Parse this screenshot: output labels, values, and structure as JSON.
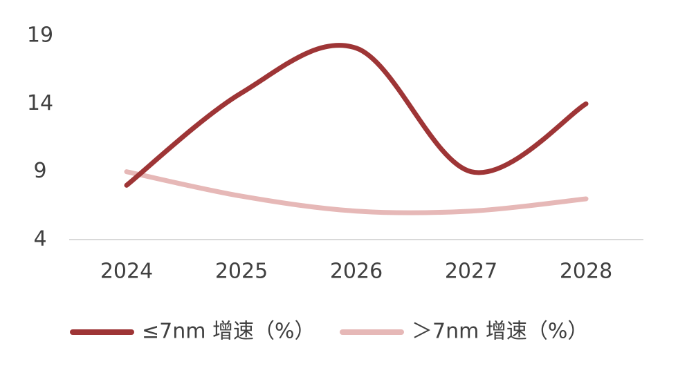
{
  "chart_data": {
    "type": "line",
    "categories": [
      "2024",
      "2025",
      "2026",
      "2027",
      "2028"
    ],
    "series": [
      {
        "name": "≤7nm 增速（%）",
        "color": "#9e3536",
        "values": [
          8.0,
          14.8,
          18.1,
          9.0,
          14.0
        ]
      },
      {
        "name": "＞7nm 增速（%）",
        "color": "#e6b8b7",
        "values": [
          9.0,
          7.2,
          6.1,
          6.1,
          7.0
        ]
      }
    ],
    "ylim": [
      4,
      19
    ],
    "yticks": [
      4,
      9,
      14,
      19
    ],
    "smooth": true
  }
}
